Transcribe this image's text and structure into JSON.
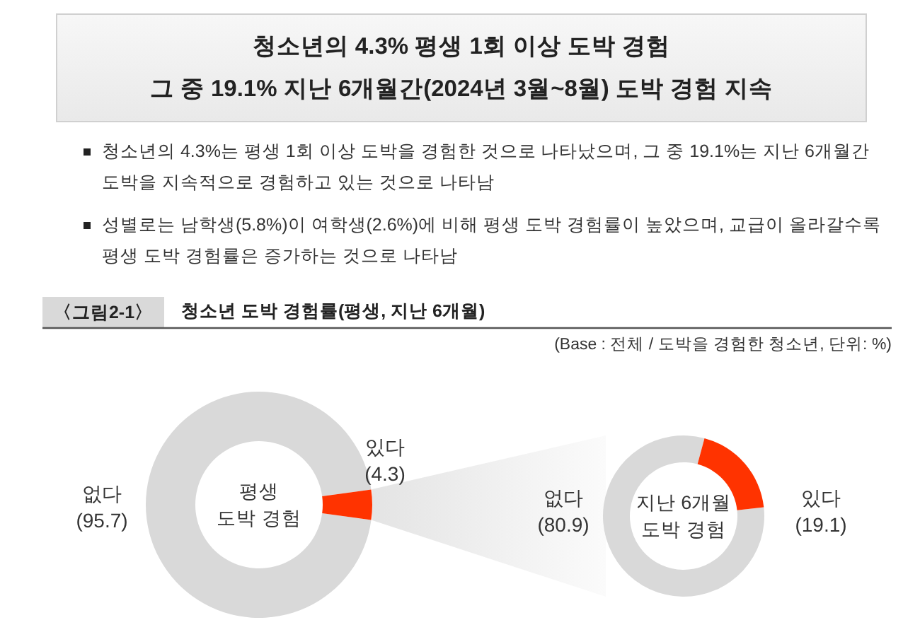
{
  "chart_data": [
    {
      "type": "donut",
      "title": "청소년의 4.3% 평생 1회 이상 도박 경험",
      "subtitle": "그 중 19.1% 지난 6개월간(2024년 3월~8월) 도박 경험 지속",
      "annotations": [
        "청소년의 4.3%는 평생 1회 이상 도박을 경험한 것으로 나타났으며, 그 중 19.1%는 지난 6개월간 도박을 지속적으로 경험하고 있는 것으로 나타남",
        "성별로는 남학생(5.8%)이 여학생(2.6%)에 비해 평생 도박 경험률이 높았으며, 교급이 올라갈수록 평생 도박 경험률은 증가하는 것으로 나타남",
        "〈그림2-1〉",
        "청소년 도박 경험률(평생, 지난 6개월)",
        "(Base : 전체 / 도박을 경험한 청소년, 단위: %)",
        "평생\n도박 경험"
      ],
      "categories": [
        "없다",
        "있다"
      ],
      "values": [
        95.7,
        4.3
      ],
      "value_labels": [
        "(95.7)",
        "(4.3)"
      ],
      "colors": [
        "#d9d9d9",
        "#ff3300"
      ]
    },
    {
      "type": "donut",
      "annotations": [
        "지난 6개월\n도박 경험"
      ],
      "categories": [
        "없다",
        "있다"
      ],
      "values": [
        80.9,
        19.1
      ],
      "value_labels": [
        "(80.9)",
        "(19.1)"
      ],
      "colors": [
        "#d9d9d9",
        "#ff3300"
      ]
    }
  ]
}
